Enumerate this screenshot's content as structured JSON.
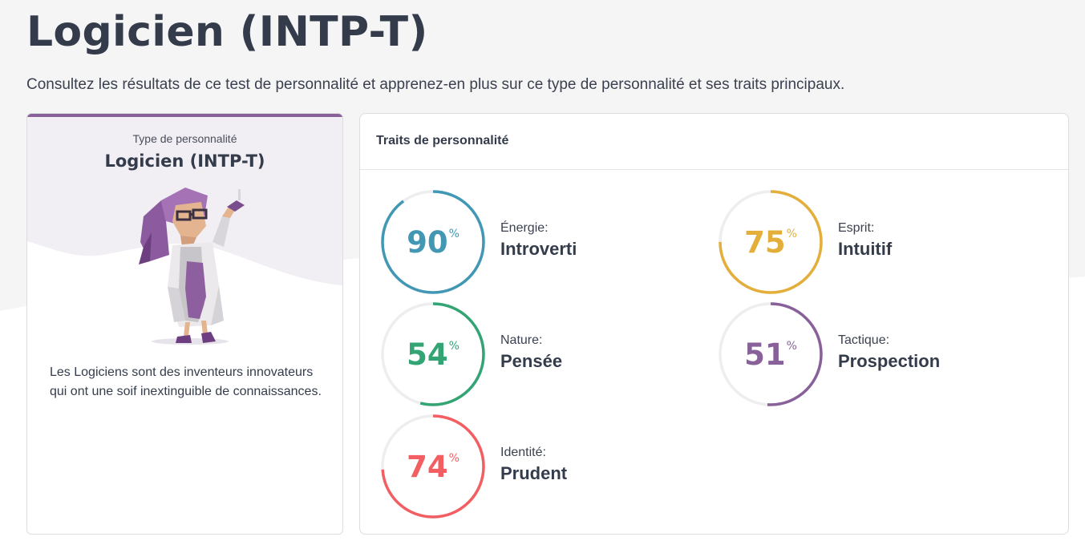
{
  "page": {
    "title": "Logicien (INTP-T)",
    "subtitle": "Consultez les résultats de ce test de personnalité et apprenez-en plus sur ce type de personnalité et ses traits principaux."
  },
  "type_card": {
    "label": "Type de personnalité",
    "name": "Logicien (INTP-T)",
    "description": "Les Logiciens sont des inventeurs innovateurs qui ont une soif inextinguible de connaissances.",
    "accent_color": "#88619a",
    "avatar_icon": "logician-character-illustration"
  },
  "traits_card": {
    "title": "Traits de personnalité",
    "percent_symbol": "%",
    "traits": [
      {
        "category": "Énergie:",
        "value": "Introverti",
        "percent": 90,
        "display": "90",
        "color": "#4298b4"
      },
      {
        "category": "Esprit:",
        "value": "Intuitif",
        "percent": 75,
        "display": "75",
        "color": "#e4ae3a"
      },
      {
        "category": "Nature:",
        "value": "Pensée",
        "percent": 54,
        "display": "54",
        "color": "#33a474"
      },
      {
        "category": "Tactique:",
        "value": "Prospection",
        "percent": 51,
        "display": "51",
        "color": "#88619a"
      },
      {
        "category": "Identité:",
        "value": "Prudent",
        "percent": 74,
        "display": "74",
        "color": "#f25e62"
      }
    ]
  }
}
